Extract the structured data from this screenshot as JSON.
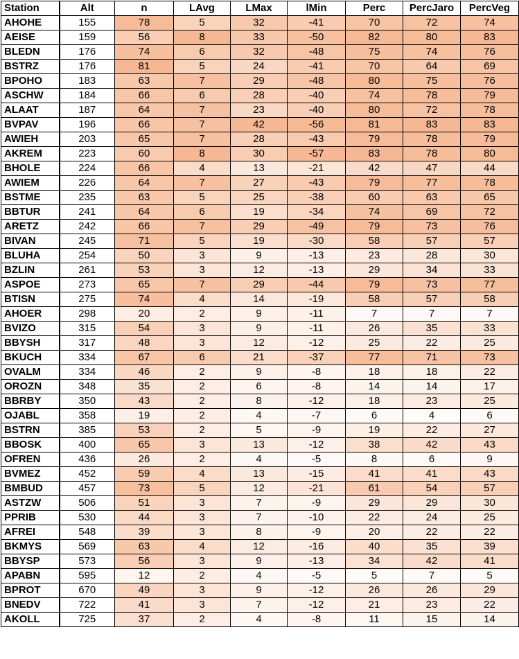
{
  "heat_color": "#f4a97c",
  "columns": [
    "Station",
    "Alt",
    "n",
    "LAvg",
    "LMax",
    "lMin",
    "Perc",
    "PercJaro",
    "PercVeg"
  ],
  "rows": [
    [
      "AHOHE",
      "155",
      "78",
      "5",
      "32",
      "-41",
      "70",
      "72",
      "74"
    ],
    [
      "AEISE",
      "159",
      "56",
      "8",
      "33",
      "-50",
      "82",
      "80",
      "83"
    ],
    [
      "BLEDN",
      "176",
      "74",
      "6",
      "32",
      "-48",
      "75",
      "74",
      "76"
    ],
    [
      "BSTRZ",
      "176",
      "81",
      "5",
      "24",
      "-41",
      "70",
      "64",
      "69"
    ],
    [
      "BPOHO",
      "183",
      "63",
      "7",
      "29",
      "-48",
      "80",
      "75",
      "76"
    ],
    [
      "ASCHW",
      "184",
      "66",
      "6",
      "28",
      "-40",
      "74",
      "78",
      "79"
    ],
    [
      "ALAAT",
      "187",
      "64",
      "7",
      "23",
      "-40",
      "80",
      "72",
      "78"
    ],
    [
      "BVPAV",
      "196",
      "66",
      "7",
      "42",
      "-56",
      "81",
      "83",
      "83"
    ],
    [
      "AWIEH",
      "203",
      "65",
      "7",
      "28",
      "-43",
      "79",
      "78",
      "79"
    ],
    [
      "AKREM",
      "223",
      "60",
      "8",
      "30",
      "-57",
      "83",
      "78",
      "80"
    ],
    [
      "BHOLE",
      "224",
      "66",
      "4",
      "13",
      "-21",
      "42",
      "47",
      "44"
    ],
    [
      "AWIEM",
      "226",
      "64",
      "7",
      "27",
      "-43",
      "79",
      "77",
      "78"
    ],
    [
      "BSTME",
      "235",
      "63",
      "5",
      "25",
      "-38",
      "60",
      "63",
      "65"
    ],
    [
      "BBTUR",
      "241",
      "64",
      "6",
      "19",
      "-34",
      "74",
      "69",
      "72"
    ],
    [
      "ARETZ",
      "242",
      "66",
      "7",
      "29",
      "-49",
      "79",
      "73",
      "76"
    ],
    [
      "BIVAN",
      "245",
      "71",
      "5",
      "19",
      "-30",
      "58",
      "57",
      "57"
    ],
    [
      "BLUHA",
      "254",
      "50",
      "3",
      "9",
      "-13",
      "23",
      "28",
      "30"
    ],
    [
      "BZLIN",
      "261",
      "53",
      "3",
      "12",
      "-13",
      "29",
      "34",
      "33"
    ],
    [
      "ASPOE",
      "273",
      "65",
      "7",
      "29",
      "-44",
      "79",
      "73",
      "77"
    ],
    [
      "BTISN",
      "275",
      "74",
      "4",
      "14",
      "-19",
      "58",
      "57",
      "58"
    ],
    [
      "AHOER",
      "298",
      "20",
      "2",
      "9",
      "-11",
      "7",
      "7",
      "7"
    ],
    [
      "BVIZO",
      "315",
      "54",
      "3",
      "9",
      "-11",
      "26",
      "35",
      "33"
    ],
    [
      "BBYSH",
      "317",
      "48",
      "3",
      "12",
      "-12",
      "25",
      "22",
      "25"
    ],
    [
      "BKUCH",
      "334",
      "67",
      "6",
      "21",
      "-37",
      "77",
      "71",
      "73"
    ],
    [
      "OVALM",
      "334",
      "46",
      "2",
      "9",
      "-8",
      "18",
      "18",
      "22"
    ],
    [
      "OROZN",
      "348",
      "35",
      "2",
      "6",
      "-8",
      "14",
      "14",
      "17"
    ],
    [
      "BBRBY",
      "350",
      "43",
      "2",
      "8",
      "-12",
      "18",
      "23",
      "25"
    ],
    [
      "OJABL",
      "358",
      "19",
      "2",
      "4",
      "-7",
      "6",
      "4",
      "6"
    ],
    [
      "BSTRN",
      "385",
      "53",
      "2",
      "5",
      "-9",
      "19",
      "22",
      "27"
    ],
    [
      "BBOSK",
      "400",
      "65",
      "3",
      "13",
      "-12",
      "38",
      "42",
      "43"
    ],
    [
      "OFREN",
      "436",
      "26",
      "2",
      "4",
      "-5",
      "8",
      "6",
      "9"
    ],
    [
      "BVMEZ",
      "452",
      "59",
      "4",
      "13",
      "-15",
      "41",
      "41",
      "43"
    ],
    [
      "BMBUD",
      "457",
      "73",
      "5",
      "12",
      "-21",
      "61",
      "54",
      "57"
    ],
    [
      "ASTZW",
      "506",
      "51",
      "3",
      "7",
      "-9",
      "29",
      "29",
      "30"
    ],
    [
      "PPRIB",
      "530",
      "44",
      "3",
      "7",
      "-10",
      "22",
      "24",
      "25"
    ],
    [
      "AFREI",
      "548",
      "39",
      "3",
      "8",
      "-9",
      "20",
      "22",
      "22"
    ],
    [
      "BKMYS",
      "569",
      "63",
      "4",
      "12",
      "-16",
      "40",
      "35",
      "39"
    ],
    [
      "BBYSP",
      "573",
      "56",
      "3",
      "9",
      "-13",
      "34",
      "42",
      "41"
    ],
    [
      "APABN",
      "595",
      "12",
      "2",
      "4",
      "-5",
      "5",
      "7",
      "5"
    ],
    [
      "BPROT",
      "670",
      "49",
      "3",
      "9",
      "-12",
      "26",
      "26",
      "29"
    ],
    [
      "BNEDV",
      "722",
      "41",
      "3",
      "7",
      "-12",
      "21",
      "23",
      "22"
    ],
    [
      "AKOLL",
      "725",
      "37",
      "2",
      "4",
      "-8",
      "11",
      "15",
      "14"
    ]
  ]
}
